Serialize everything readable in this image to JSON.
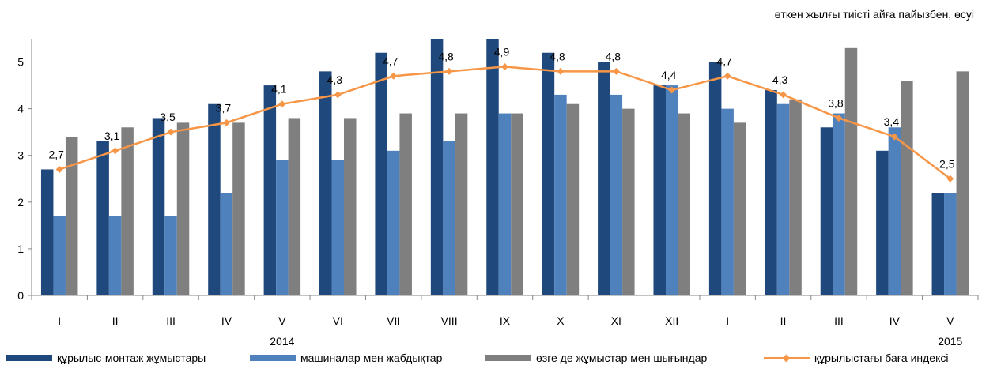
{
  "note": "өткен жылғы тиісті айға пайызбен, өсуі",
  "chart_data": {
    "type": "bar",
    "categories": [
      "I",
      "II",
      "III",
      "IV",
      "V",
      "VI",
      "VII",
      "VIII",
      "IX",
      "X",
      "XI",
      "XII",
      "I",
      "II",
      "III",
      "IV",
      "V"
    ],
    "year_labels": [
      {
        "text": "2014",
        "at_category": 4
      },
      {
        "text": "2015",
        "at_category": 16
      }
    ],
    "ylim": [
      0,
      5.5
    ],
    "yticks": [
      0,
      1,
      2,
      3,
      4,
      5
    ],
    "grid": false,
    "legend": "bottom",
    "series": [
      {
        "name": "құрылыс-монтаж жұмыстары",
        "type": "bar",
        "color": "#1f497d",
        "values": [
          2.7,
          3.3,
          3.8,
          4.1,
          4.5,
          4.8,
          5.2,
          5.5,
          5.5,
          5.2,
          5.0,
          4.5,
          5.0,
          4.4,
          3.6,
          3.1,
          2.2
        ]
      },
      {
        "name": "машиналар мен жабдықтар",
        "type": "bar",
        "color": "#4f81bd",
        "values": [
          1.7,
          1.7,
          1.7,
          2.2,
          2.9,
          2.9,
          3.1,
          3.3,
          3.9,
          4.3,
          4.3,
          4.5,
          4.0,
          4.1,
          3.9,
          3.6,
          2.2
        ]
      },
      {
        "name": "өзге де жұмыстар мен шығындар",
        "type": "bar",
        "color": "#7f7f7f",
        "values": [
          3.4,
          3.6,
          3.7,
          3.7,
          3.8,
          3.8,
          3.9,
          3.9,
          3.9,
          4.1,
          4.0,
          3.9,
          3.7,
          4.2,
          5.3,
          4.6,
          4.8
        ]
      },
      {
        "name": "құрылыстағы баға индексі",
        "type": "line",
        "color": "#f79646",
        "values": [
          2.7,
          3.1,
          3.5,
          3.7,
          4.1,
          4.3,
          4.7,
          4.8,
          4.9,
          4.8,
          4.8,
          4.4,
          4.7,
          4.3,
          3.8,
          3.4,
          2.5
        ],
        "labels": [
          "2,7",
          "3,1",
          "3,5",
          "3,7",
          "4,1",
          "4,3",
          "4,7",
          "4,8",
          "4,9",
          "4,8",
          "4,8",
          "4,4",
          "4,7",
          "4,3",
          "3,8",
          "3,4",
          "2,5"
        ]
      }
    ]
  }
}
